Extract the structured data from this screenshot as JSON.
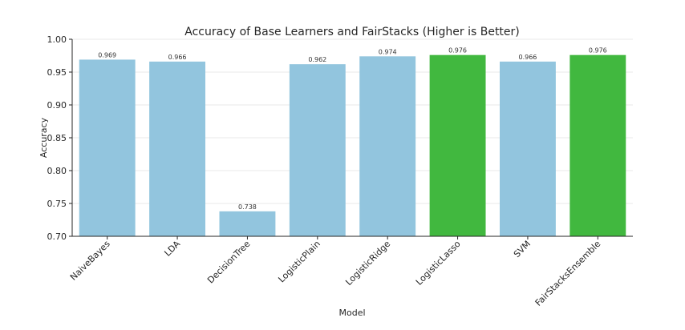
{
  "chart_data": {
    "type": "bar",
    "title": "Accuracy of Base Learners and FairStacks (Higher is Better)",
    "xlabel": "Model",
    "ylabel": "Accuracy",
    "ylim": [
      0.7,
      1.0
    ],
    "yticks": [
      0.7,
      0.75,
      0.8,
      0.85,
      0.9,
      0.95,
      1.0
    ],
    "ytick_labels": [
      "0.70",
      "0.75",
      "0.80",
      "0.85",
      "0.90",
      "0.95",
      "1.00"
    ],
    "grid": true,
    "categories": [
      "NaiveBayes",
      "LDA",
      "DecisionTree",
      "LogisticPlain",
      "LogisticRidge",
      "LogisticLasso",
      "SVM",
      "FairStacksEnsemble"
    ],
    "values": [
      0.969,
      0.966,
      0.738,
      0.962,
      0.974,
      0.976,
      0.966,
      0.976
    ],
    "value_labels": [
      "0.969",
      "0.966",
      "0.738",
      "0.962",
      "0.974",
      "0.976",
      "0.966",
      "0.976"
    ],
    "colors": [
      "#92c5de",
      "#92c5de",
      "#92c5de",
      "#92c5de",
      "#92c5de",
      "#41b83f",
      "#92c5de",
      "#41b83f"
    ]
  }
}
